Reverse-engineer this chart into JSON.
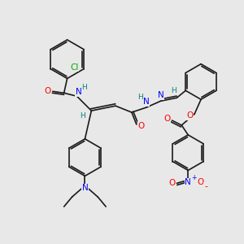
{
  "background_color": "#e8e8e8",
  "bond_color": "#1a1a1a",
  "atom_colors": {
    "N": "#0000ff",
    "O": "#ff0000",
    "Cl": "#00aa00",
    "H": "#008080",
    "C": "#1a1a1a"
  },
  "figure_size": [
    3.0,
    3.0
  ],
  "dpi": 100
}
